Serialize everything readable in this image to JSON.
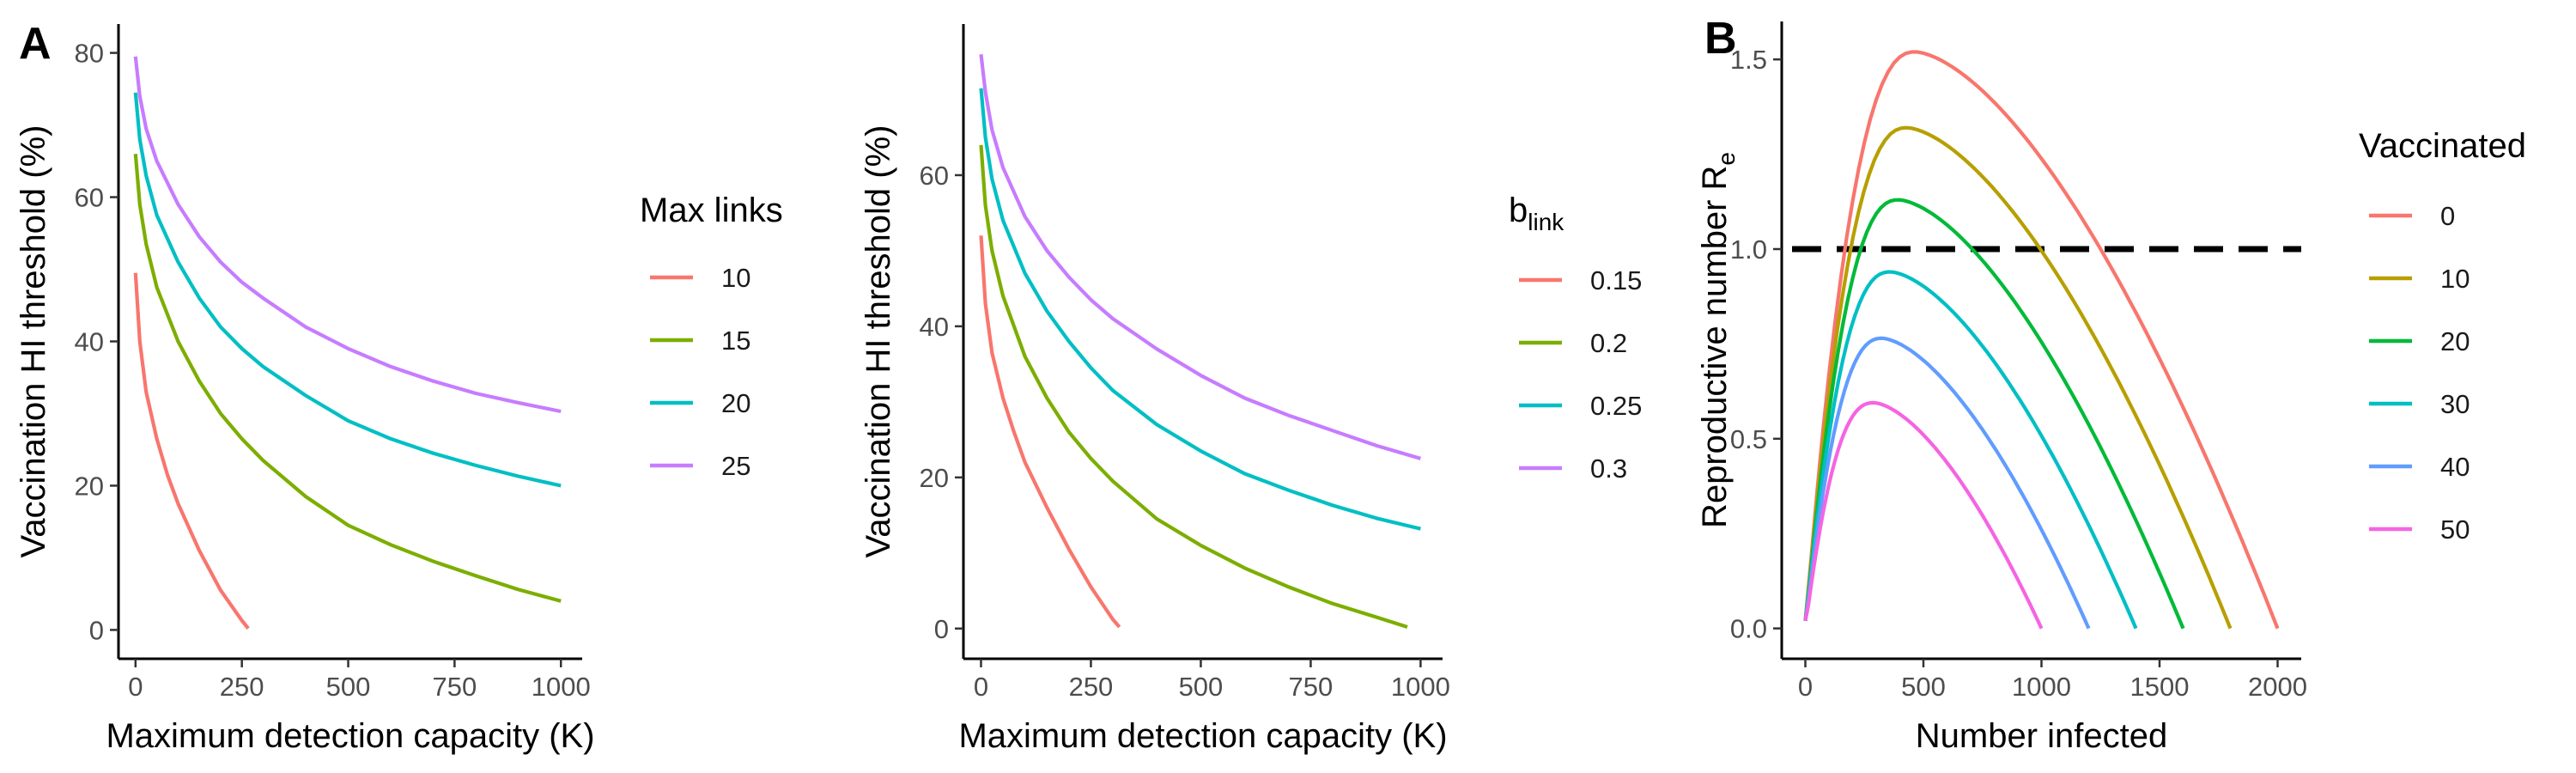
{
  "panel_labels": {
    "A": "A",
    "B": "B"
  },
  "colors": {
    "red": "#F8766D",
    "olive": "#B79F00",
    "green4": "#7CAE00",
    "green": "#00BA38",
    "cyan": "#00BFC4",
    "blue": "#619CFF",
    "purple": "#C77CFF",
    "magenta": "#F564E3"
  },
  "chart_data": [
    {
      "type": "line",
      "xlabel": "Maximum detection capacity (K)",
      "ylabel": "Vaccination HI threshold (%)",
      "xlim": [
        -40,
        1050
      ],
      "ylim": [
        -4,
        84
      ],
      "xticks": [
        0,
        250,
        500,
        750,
        1000
      ],
      "yticks": [
        0,
        20,
        40,
        60,
        80
      ],
      "grid": false,
      "legend": {
        "title": "Max links",
        "title_sub": "",
        "position": "right"
      },
      "series": [
        {
          "name": "10",
          "color": "#F8766D",
          "x": [
            0,
            10,
            25,
            50,
            75,
            100,
            150,
            200,
            250,
            265
          ],
          "y": [
            49.5,
            40,
            33,
            26.5,
            21.5,
            17.5,
            11,
            5.5,
            1.3,
            0.2
          ]
        },
        {
          "name": "15",
          "color": "#7CAE00",
          "x": [
            0,
            10,
            25,
            50,
            100,
            150,
            200,
            250,
            300,
            400,
            500,
            600,
            700,
            800,
            900,
            1000
          ],
          "y": [
            66,
            59,
            53.5,
            47.5,
            40,
            34.5,
            30,
            26.5,
            23.5,
            18.5,
            14.5,
            11.8,
            9.5,
            7.5,
            5.6,
            4
          ]
        },
        {
          "name": "20",
          "color": "#00BFC4",
          "x": [
            0,
            10,
            25,
            50,
            100,
            150,
            200,
            250,
            300,
            400,
            500,
            600,
            700,
            800,
            900,
            1000
          ],
          "y": [
            74.5,
            68,
            63,
            57.5,
            51,
            46,
            42,
            39,
            36.5,
            32.5,
            29,
            26.5,
            24.5,
            22.8,
            21.3,
            20
          ]
        },
        {
          "name": "25",
          "color": "#C77CFF",
          "x": [
            0,
            10,
            25,
            50,
            100,
            150,
            200,
            250,
            300,
            400,
            500,
            600,
            700,
            800,
            900,
            1000
          ],
          "y": [
            79.5,
            74,
            69.5,
            65,
            59,
            54.5,
            51,
            48.2,
            46,
            42,
            39,
            36.5,
            34.5,
            32.8,
            31.5,
            30.3
          ]
        }
      ]
    },
    {
      "type": "line",
      "xlabel": "Maximum detection capacity (K)",
      "ylabel": "Vaccination HI threshold (%)",
      "xlim": [
        -40,
        1050
      ],
      "ylim": [
        -4,
        80
      ],
      "xticks": [
        0,
        250,
        500,
        750,
        1000
      ],
      "yticks": [
        0,
        20,
        40,
        60
      ],
      "grid": false,
      "legend": {
        "title": "b",
        "title_sub": "link",
        "position": "right"
      },
      "series": [
        {
          "name": "0.15",
          "color": "#F8766D",
          "x": [
            0,
            10,
            25,
            50,
            75,
            100,
            150,
            200,
            250,
            300,
            315
          ],
          "y": [
            52,
            43,
            36.5,
            30.5,
            26,
            22,
            16,
            10.5,
            5.5,
            1.2,
            0.2
          ]
        },
        {
          "name": "0.2",
          "color": "#7CAE00",
          "x": [
            0,
            10,
            25,
            50,
            100,
            150,
            200,
            250,
            300,
            400,
            500,
            600,
            700,
            800,
            900,
            970
          ],
          "y": [
            64,
            56,
            50,
            44,
            36,
            30.5,
            26,
            22.5,
            19.5,
            14.5,
            11,
            8,
            5.5,
            3.3,
            1.5,
            0.2
          ]
        },
        {
          "name": "0.25",
          "color": "#00BFC4",
          "x": [
            0,
            10,
            25,
            50,
            100,
            150,
            200,
            250,
            300,
            400,
            500,
            600,
            700,
            800,
            900,
            1000
          ],
          "y": [
            71.5,
            65,
            59.5,
            54,
            47,
            42,
            38,
            34.5,
            31.5,
            27,
            23.5,
            20.5,
            18.3,
            16.3,
            14.6,
            13.2
          ]
        },
        {
          "name": "0.3",
          "color": "#C77CFF",
          "x": [
            0,
            10,
            25,
            50,
            100,
            150,
            200,
            250,
            300,
            400,
            500,
            600,
            700,
            800,
            900,
            1000
          ],
          "y": [
            76,
            71,
            66,
            61,
            54.5,
            50,
            46.5,
            43.5,
            41,
            37,
            33.5,
            30.5,
            28.2,
            26.2,
            24.2,
            22.5
          ]
        }
      ]
    },
    {
      "type": "line",
      "xlabel": "Number infected",
      "ylabel": "Reproductive number",
      "ylabel_sub": "e",
      "ylabel_symbol": "R",
      "xlim": [
        -100,
        2100
      ],
      "ylim": [
        -0.08,
        1.6
      ],
      "xticks": [
        0,
        500,
        1000,
        1500,
        2000
      ],
      "yticks": [
        0.0,
        0.5,
        1.0,
        1.5
      ],
      "ytick_labels": [
        "0.0",
        "0.5",
        "1.0",
        "1.5"
      ],
      "grid": false,
      "hline": {
        "y": 1.0,
        "style": "dashed",
        "color": "#000000"
      },
      "legend": {
        "title": "Vaccinated",
        "title_sub": "",
        "position": "right"
      },
      "series": [
        {
          "name": "0",
          "color": "#F8766D",
          "peak_x": 465,
          "peak_y": 1.52,
          "x_end": 2000
        },
        {
          "name": "10",
          "color": "#B79F00",
          "peak_x": 430,
          "peak_y": 1.32,
          "x_end": 1800
        },
        {
          "name": "20",
          "color": "#00BA38",
          "peak_x": 395,
          "peak_y": 1.13,
          "x_end": 1600
        },
        {
          "name": "30",
          "color": "#00BFC4",
          "peak_x": 360,
          "peak_y": 0.94,
          "x_end": 1400
        },
        {
          "name": "40",
          "color": "#619CFF",
          "peak_x": 325,
          "peak_y": 0.765,
          "x_end": 1200
        },
        {
          "name": "50",
          "color": "#F564E3",
          "peak_x": 290,
          "peak_y": 0.595,
          "x_end": 1000
        }
      ]
    }
  ]
}
